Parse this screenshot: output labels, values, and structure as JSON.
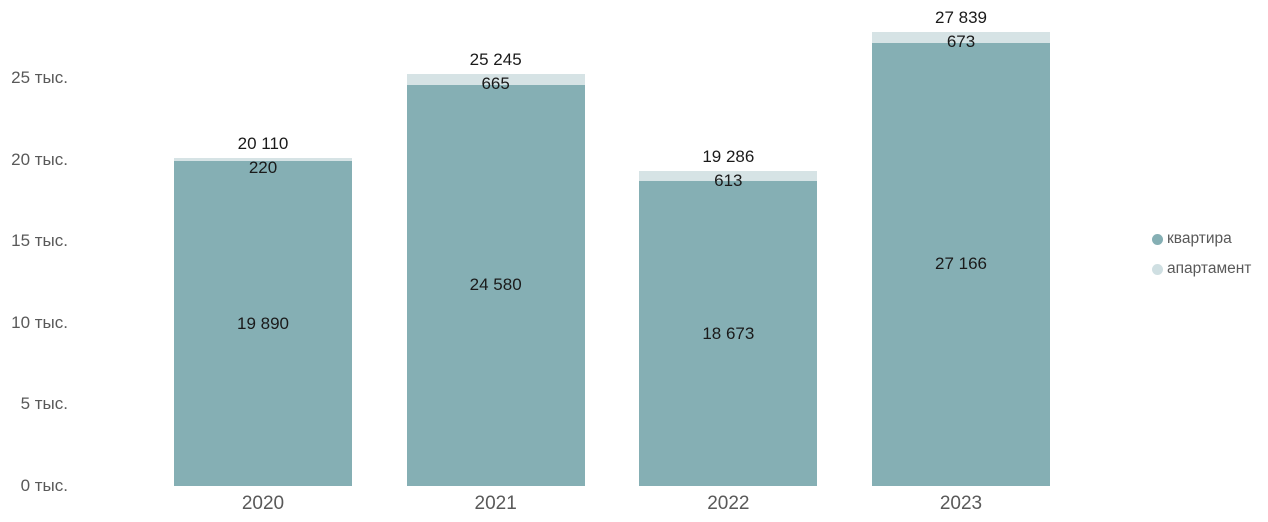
{
  "chart_data": {
    "type": "bar",
    "stacked": true,
    "orientation": "vertical",
    "categories": [
      "2020",
      "2021",
      "2022",
      "2023"
    ],
    "series": [
      {
        "name": "квартира",
        "color": "#85afb4",
        "values": [
          19890,
          24580,
          18673,
          27166
        ],
        "labels": [
          "19 890",
          "24 580",
          "18 673",
          "27 166"
        ]
      },
      {
        "name": "апартамент",
        "color": "#d6e3e5",
        "values": [
          220,
          665,
          613,
          673
        ],
        "labels": [
          "220",
          "665",
          "613",
          "673"
        ]
      }
    ],
    "totals": {
      "values": [
        20110,
        25245,
        19286,
        27839
      ],
      "labels": [
        "20 110",
        "25 245",
        "19 286",
        "27 839"
      ]
    },
    "y_axis": {
      "unit": "тыс.",
      "ticks": [
        {
          "value": 0,
          "label": "0 тыс."
        },
        {
          "value": 5000,
          "label": "5 тыс."
        },
        {
          "value": 10000,
          "label": "10 тыс."
        },
        {
          "value": 15000,
          "label": "15 тыс."
        },
        {
          "value": 20000,
          "label": "20 тыс."
        },
        {
          "value": 25000,
          "label": "25 тыс."
        }
      ]
    },
    "ylim": [
      0,
      29800
    ],
    "grid": false,
    "legend": {
      "position": "right",
      "items": [
        {
          "label": "квартира",
          "color": "#85afb4"
        },
        {
          "label": "апартамент",
          "color": "#cfdfe2"
        }
      ]
    }
  },
  "colors": {
    "background": "#ffffff",
    "axis_text": "#595959",
    "data_label_text": "#1a1a1a"
  }
}
